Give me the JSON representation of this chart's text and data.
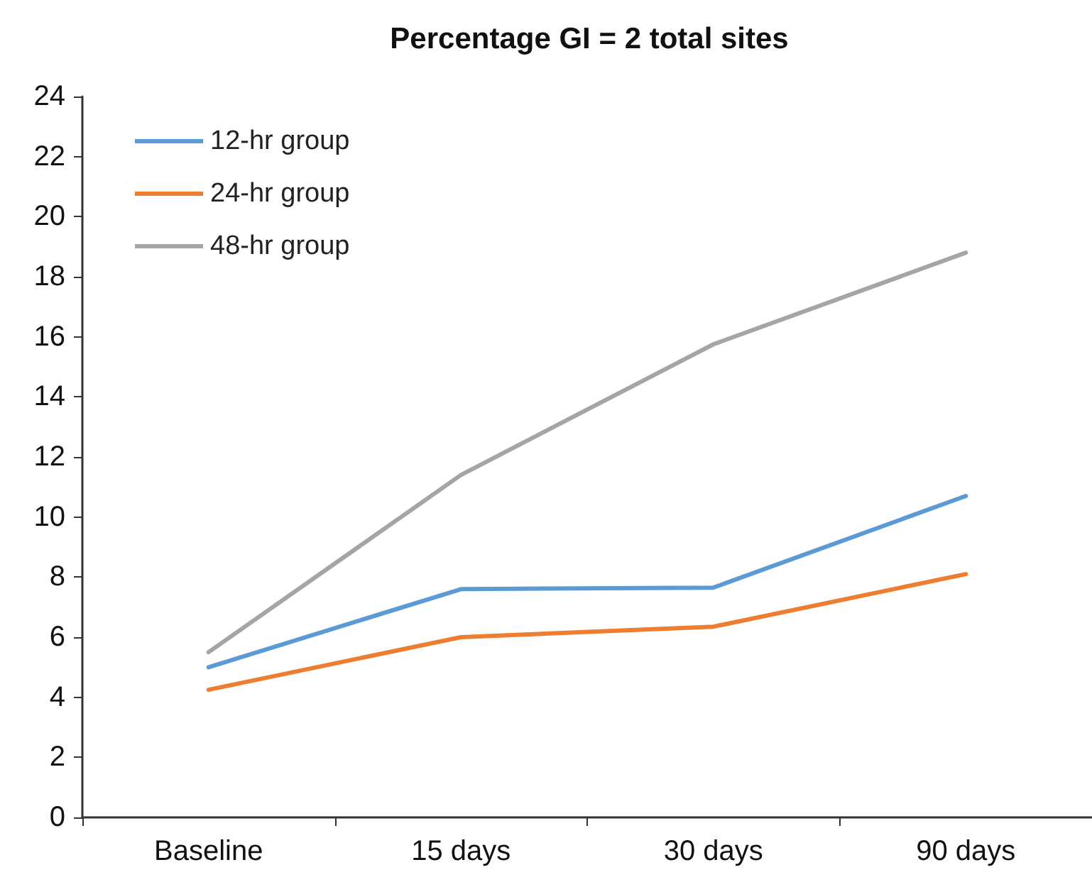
{
  "chart_data": {
    "type": "line",
    "title": "Percentage GI = 2 total sites",
    "categories": [
      "Baseline",
      "15 days",
      "30 days",
      "90 days"
    ],
    "series": [
      {
        "name": "12-hr group",
        "color": "#5b9bd5",
        "values": [
          5.0,
          7.6,
          7.65,
          10.7
        ]
      },
      {
        "name": "24-hr group",
        "color": "#ed7d31",
        "values": [
          4.25,
          6.0,
          6.35,
          8.1
        ]
      },
      {
        "name": "48-hr group",
        "color": "#a5a5a5",
        "values": [
          5.5,
          11.4,
          15.75,
          18.8
        ]
      }
    ],
    "ylim": [
      0,
      24
    ],
    "yticks": [
      0,
      2,
      4,
      6,
      8,
      10,
      12,
      14,
      16,
      18,
      20,
      22,
      24
    ],
    "grid": false,
    "legend": "top left",
    "marker": "none",
    "line_style": "solid"
  }
}
